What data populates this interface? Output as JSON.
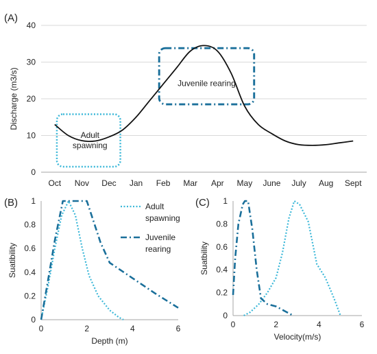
{
  "colors": {
    "discharge": "#111111",
    "adult": "#3ab7d8",
    "juvenile": "#1a6f9a",
    "grid": "#d9d9d9",
    "axis": "#a6a6a6"
  },
  "chart_data": [
    {
      "id": "A",
      "panel_label": "(A)",
      "type": "line",
      "ylabel": "Discharge (m3/s)",
      "xlabel": "",
      "categories": [
        "Oct",
        "Nov",
        "Dec",
        "Jan",
        "Feb",
        "Mar",
        "Apr",
        "May",
        "June",
        "July",
        "Aug",
        "Sept"
      ],
      "ylim": [
        0,
        40
      ],
      "yticks": [
        0,
        10,
        20,
        30,
        40
      ],
      "grid": true,
      "series": [
        {
          "key": "discharge",
          "x": [
            0,
            0.5,
            1,
            1.5,
            2,
            2.5,
            3,
            3.5,
            4,
            4.5,
            5,
            5.5,
            6,
            6.5,
            7,
            7.5,
            8,
            8.5,
            9,
            9.5,
            10,
            10.5,
            11
          ],
          "y": [
            13,
            10,
            8.6,
            8.5,
            9.6,
            11.5,
            15,
            19.5,
            24,
            28.5,
            33,
            34.5,
            33,
            27,
            18,
            13,
            10.5,
            8.5,
            7.5,
            7.3,
            7.5,
            8,
            8.5
          ]
        }
      ],
      "boxes": [
        {
          "key": "adult",
          "label": "Adult spawning",
          "label_lines": [
            "Adult",
            "spawning"
          ],
          "x": [
            0.08,
            2.42
          ],
          "y": [
            1.5,
            15.8
          ]
        },
        {
          "key": "juvenile",
          "label": "Juvenile rearing",
          "label_lines": [
            "Juvenile rearing"
          ],
          "x": [
            3.85,
            7.35
          ],
          "y": [
            18.5,
            33.8
          ]
        }
      ]
    },
    {
      "id": "B",
      "panel_label": "(B)",
      "type": "line",
      "ylabel": "Suatibility",
      "xlabel": "Depth (m)",
      "xlim": [
        0,
        6
      ],
      "xticks": [
        0,
        2,
        4,
        6
      ],
      "ylim": [
        0,
        1
      ],
      "yticks": [
        0,
        0.2,
        0.4,
        0.6,
        0.8,
        1
      ],
      "grid": false,
      "legend": {
        "position": "top-right"
      },
      "series": [
        {
          "key": "adult",
          "name": "Adult spawning",
          "name_lines": [
            "Adult",
            "spawning"
          ],
          "x": [
            0,
            0.3,
            0.6,
            0.9,
            1.2,
            1.5,
            1.8,
            2.1,
            2.5,
            3.0,
            3.4,
            3.6
          ],
          "y": [
            0,
            0.28,
            0.6,
            0.88,
            1,
            0.88,
            0.6,
            0.37,
            0.2,
            0.08,
            0.02,
            0
          ]
        },
        {
          "key": "juvenile",
          "name": "Juvenile rearing",
          "name_lines": [
            "Juvenile",
            "rearing"
          ],
          "x": [
            0,
            0.3,
            0.6,
            0.95,
            1.5,
            2.0,
            2.6,
            3.0,
            4.0,
            5.0,
            6.0
          ],
          "y": [
            0,
            0.33,
            0.67,
            1,
            1,
            1,
            0.65,
            0.48,
            0.35,
            0.22,
            0.1
          ]
        }
      ]
    },
    {
      "id": "C",
      "panel_label": "(C)",
      "type": "line",
      "ylabel": "Suatbility",
      "xlabel": "Velocity(m/s)",
      "xlim": [
        0,
        6
      ],
      "xticks": [
        0,
        2,
        4,
        6
      ],
      "ylim": [
        0,
        1
      ],
      "yticks": [
        0,
        0.2,
        0.4,
        0.6,
        0.8,
        1
      ],
      "grid": false,
      "series": [
        {
          "key": "adult",
          "x": [
            0.5,
            0.8,
            1.2,
            1.6,
            2.0,
            2.3,
            2.6,
            2.85,
            3.1,
            3.5,
            3.9,
            4.3,
            4.7,
            5.0
          ],
          "y": [
            0,
            0.03,
            0.1,
            0.2,
            0.33,
            0.55,
            0.85,
            1,
            0.97,
            0.82,
            0.45,
            0.33,
            0.15,
            0
          ]
        },
        {
          "key": "juvenile",
          "x": [
            0,
            0.1,
            0.25,
            0.45,
            0.55,
            0.7,
            0.9,
            1.1,
            1.3,
            1.6,
            2.0,
            2.5,
            2.8
          ],
          "y": [
            0.18,
            0.5,
            0.8,
            0.97,
            1,
            1,
            0.75,
            0.4,
            0.15,
            0.1,
            0.08,
            0.03,
            0
          ]
        }
      ]
    }
  ]
}
